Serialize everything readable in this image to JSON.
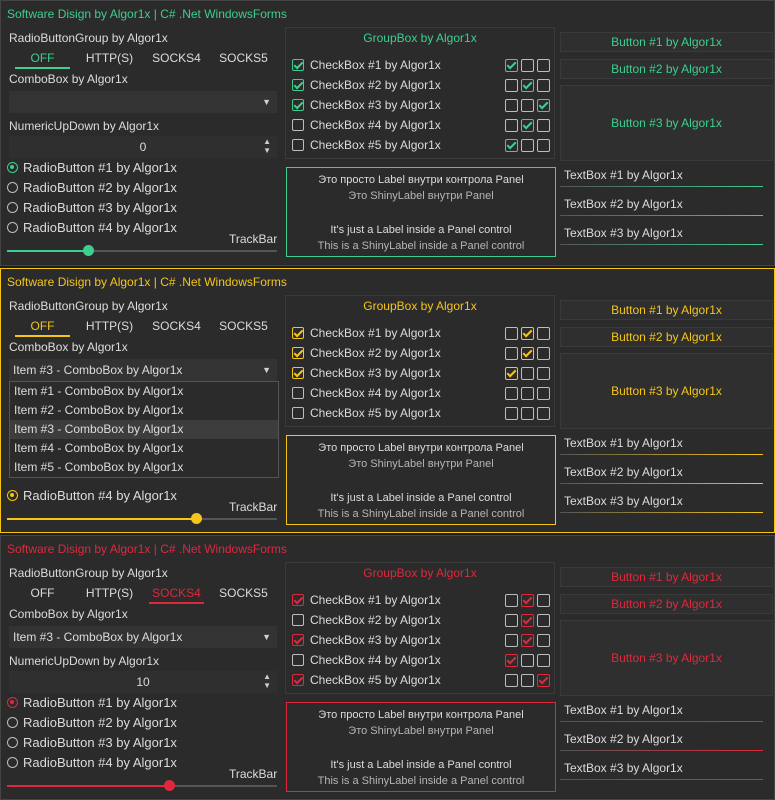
{
  "windows": [
    {
      "accent": "#3ccf8e",
      "title": "Software Disign by Algor1x | C# .Net WindowsForms",
      "radio_group_label": "RadioButtonGroup by Algor1x",
      "radio_group_options": [
        "OFF",
        "HTTP(S)",
        "SOCKS4",
        "SOCKS5"
      ],
      "radio_group_selected": 0,
      "combo_label": "ComboBox by Algor1x",
      "combo_value": "",
      "numeric_label": "NumericUpDown by Algor1x",
      "numeric_value": "0",
      "radios": [
        "RadioButton #1 by Algor1x",
        "RadioButton #2 by Algor1x",
        "RadioButton #3 by Algor1x",
        "RadioButton #4 by Algor1x"
      ],
      "radio_selected": 0,
      "trackbar_label": "TrackBar",
      "trackbar_fraction": 0.3,
      "groupbox_title": "GroupBox by Algor1x",
      "checkboxes": [
        {
          "label": "CheckBox #1 by Algor1x",
          "checked": true,
          "mini": [
            true,
            false,
            false
          ]
        },
        {
          "label": "CheckBox #2 by Algor1x",
          "checked": true,
          "mini": [
            false,
            true,
            false
          ]
        },
        {
          "label": "CheckBox #3 by Algor1x",
          "checked": true,
          "mini": [
            false,
            false,
            true
          ]
        },
        {
          "label": "CheckBox #4 by Algor1x",
          "checked": false,
          "mini": [
            false,
            true,
            false
          ]
        },
        {
          "label": "CheckBox #5 by Algor1x",
          "checked": false,
          "mini": [
            true,
            false,
            false
          ]
        }
      ],
      "panel_lines": [
        "Это просто Label внутри контрола Panel",
        "Это ShinyLabel внутри Panel",
        "It's just a Label inside a Panel control",
        "This is a ShinyLabel inside a Panel control"
      ],
      "buttons": [
        "Button #1 by Algor1x",
        "Button #2 by Algor1x",
        "Button #3 by Algor1x"
      ],
      "textboxes": [
        "TextBox #1 by Algor1x",
        "TextBox #2 by Algor1x",
        "TextBox #3 by Algor1x"
      ]
    },
    {
      "accent": "#f5c518",
      "title": "Software Disign by Algor1x | C# .Net WindowsForms",
      "radio_group_label": "RadioButtonGroup by Algor1x",
      "radio_group_options": [
        "OFF",
        "HTTP(S)",
        "SOCKS4",
        "SOCKS5"
      ],
      "radio_group_selected": 0,
      "combo_label": "ComboBox by Algor1x",
      "combo_value": "Item #3 - ComboBox by Algor1x",
      "combo_items": [
        "Item #1 - ComboBox by Algor1x",
        "Item #2 - ComboBox by Algor1x",
        "Item #3 - ComboBox by Algor1x",
        "Item #4 - ComboBox by Algor1x",
        "Item #5 - ComboBox by Algor1x"
      ],
      "combo_highlight": 2,
      "radios_visible": [
        "RadioButton #4 by Algor1x"
      ],
      "trackbar_label": "TrackBar",
      "trackbar_fraction": 0.7,
      "groupbox_title": "GroupBox by Algor1x",
      "checkboxes": [
        {
          "label": "CheckBox #1 by Algor1x",
          "checked": true,
          "mini": [
            false,
            true,
            false
          ]
        },
        {
          "label": "CheckBox #2 by Algor1x",
          "checked": true,
          "mini": [
            false,
            true,
            false
          ]
        },
        {
          "label": "CheckBox #3 by Algor1x",
          "checked": true,
          "mini": [
            true,
            false,
            false
          ]
        },
        {
          "label": "CheckBox #4 by Algor1x",
          "checked": false,
          "mini": [
            false,
            false,
            false
          ]
        },
        {
          "label": "CheckBox #5 by Algor1x",
          "checked": false,
          "mini": [
            false,
            false,
            false
          ]
        }
      ],
      "panel_lines": [
        "Это просто Label внутри контрола Panel",
        "Это ShinyLabel внутри Panel",
        "It's just a Label inside a Panel control",
        "This is a ShinyLabel inside a Panel control"
      ],
      "buttons": [
        "Button #1 by Algor1x",
        "Button #2 by Algor1x",
        "Button #3 by Algor1x"
      ],
      "textboxes": [
        "TextBox #1 by Algor1x",
        "TextBox #2 by Algor1x",
        "TextBox #3 by Algor1x"
      ]
    },
    {
      "accent": "#e0283c",
      "title": "Software Disign by Algor1x | C# .Net WindowsForms",
      "radio_group_label": "RadioButtonGroup by Algor1x",
      "radio_group_options": [
        "OFF",
        "HTTP(S)",
        "SOCKS4",
        "SOCKS5"
      ],
      "radio_group_selected": 2,
      "combo_label": "ComboBox by Algor1x",
      "combo_value": "Item #3 - ComboBox by Algor1x",
      "numeric_label": "NumericUpDown by Algor1x",
      "numeric_value": "10",
      "radios": [
        "RadioButton #1 by Algor1x",
        "RadioButton #2 by Algor1x",
        "RadioButton #3 by Algor1x",
        "RadioButton #4 by Algor1x"
      ],
      "radio_selected": 0,
      "trackbar_label": "TrackBar",
      "trackbar_fraction": 0.6,
      "groupbox_title": "GroupBox by Algor1x",
      "checkboxes": [
        {
          "label": "CheckBox #1 by Algor1x",
          "checked": true,
          "mini": [
            false,
            true,
            false
          ]
        },
        {
          "label": "CheckBox #2 by Algor1x",
          "checked": false,
          "mini": [
            false,
            true,
            false
          ]
        },
        {
          "label": "CheckBox #3 by Algor1x",
          "checked": true,
          "mini": [
            false,
            true,
            false
          ]
        },
        {
          "label": "CheckBox #4 by Algor1x",
          "checked": false,
          "mini": [
            true,
            false,
            false
          ]
        },
        {
          "label": "CheckBox #5 by Algor1x",
          "checked": true,
          "mini": [
            false,
            false,
            true
          ]
        }
      ],
      "panel_lines": [
        "Это просто Label внутри контрола Panel",
        "Это ShinyLabel внутри Panel",
        "It's just a Label inside a Panel control",
        "This is a ShinyLabel inside a Panel control"
      ],
      "buttons": [
        "Button #1 by Algor1x",
        "Button #2 by Algor1x",
        "Button #3 by Algor1x"
      ],
      "textboxes": [
        "TextBox #1 by Algor1x",
        "TextBox #2 by Algor1x",
        "TextBox #3 by Algor1x"
      ]
    }
  ]
}
